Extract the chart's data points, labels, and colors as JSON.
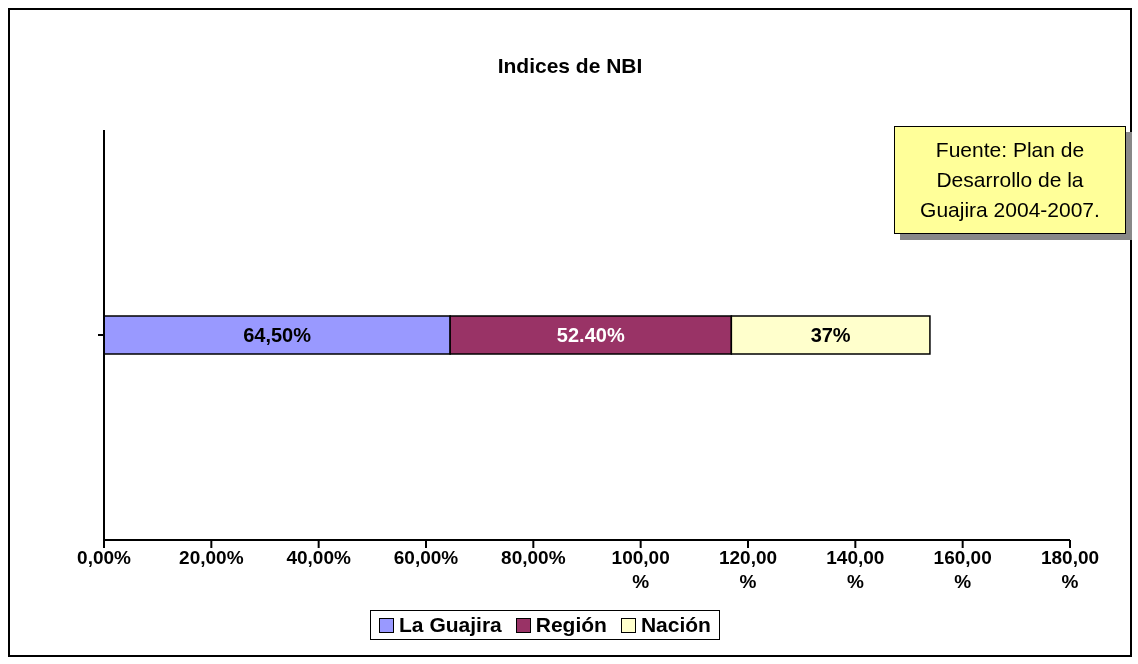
{
  "chart_data": {
    "type": "bar",
    "title": "Indices de NBI",
    "orientation": "horizontal",
    "stacked": true,
    "categories": [
      null
    ],
    "series": [
      {
        "name": "La Guajira",
        "color": "#9999ff",
        "values": [
          64.5
        ],
        "value_labels": [
          "64,50%"
        ]
      },
      {
        "name": "Región",
        "color": "#993366",
        "values": [
          52.4
        ],
        "value_labels": [
          "52.40%"
        ]
      },
      {
        "name": "Nación",
        "color": "#ffffcc",
        "values": [
          37
        ],
        "value_labels": [
          "37%"
        ]
      }
    ],
    "xlim": [
      0,
      180
    ],
    "xticks": [
      {
        "value": 0,
        "label": "0,00%"
      },
      {
        "value": 20,
        "label": "20,00%"
      },
      {
        "value": 40,
        "label": "40,00%"
      },
      {
        "value": 60,
        "label": "60,00%"
      },
      {
        "value": 80,
        "label": "80,00%"
      },
      {
        "value": 100,
        "label": "100,00 %"
      },
      {
        "value": 120,
        "label": "120,00 %"
      },
      {
        "value": 140,
        "label": "140,00 %"
      },
      {
        "value": 160,
        "label": "160,00 %"
      },
      {
        "value": 180,
        "label": "180,00 %"
      }
    ],
    "annotations": [
      "Fuente: Plan de Desarrollo de la Guajira 2004-2007."
    ],
    "grid": false,
    "legend": "bottom"
  }
}
